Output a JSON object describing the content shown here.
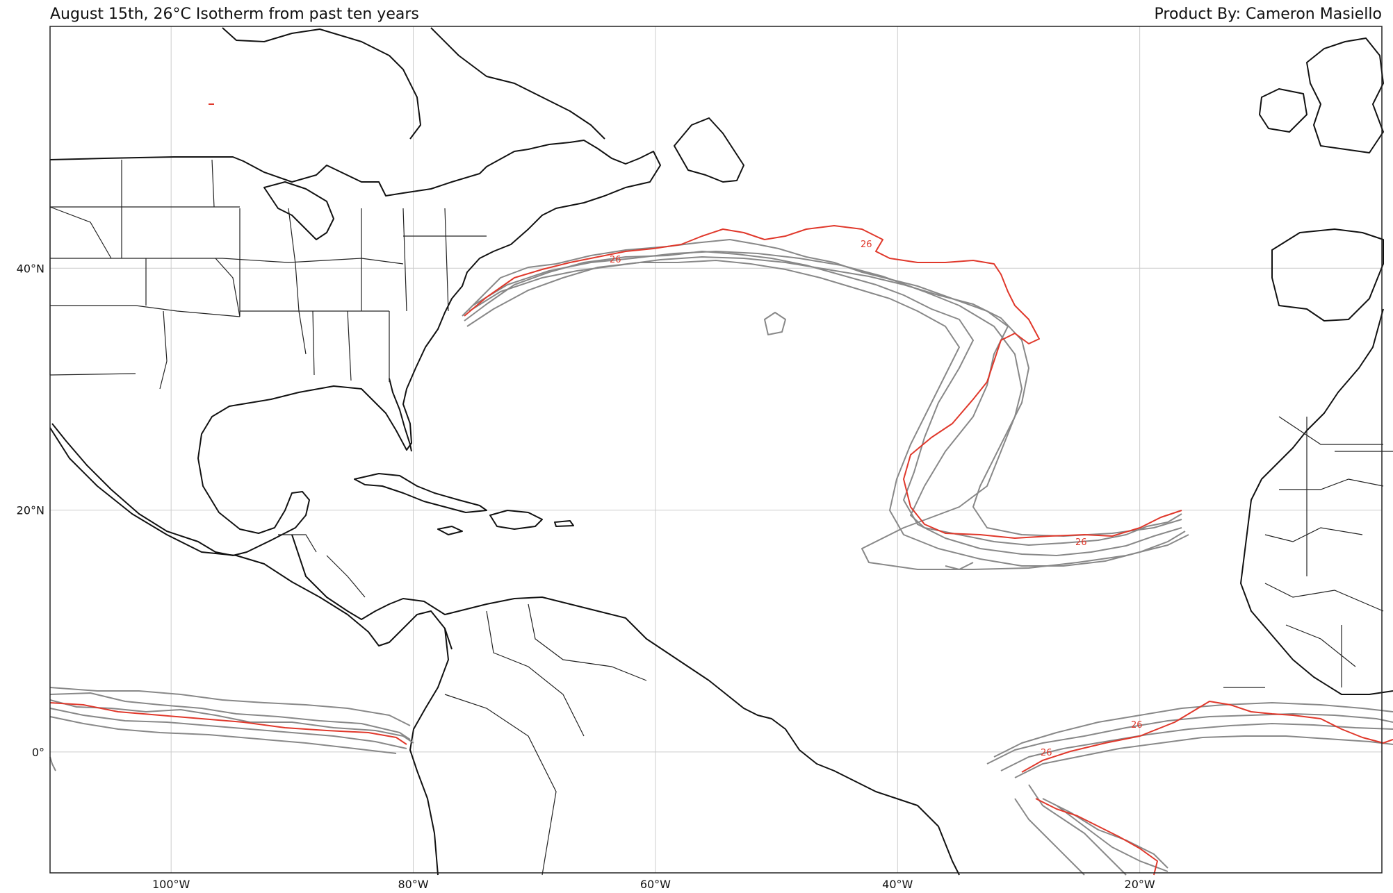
{
  "title_left": "August 15th, 26°C Isotherm from past ten years",
  "title_right": "Product By: Cameron Masiello",
  "axes": {
    "lon_range": [
      -110,
      0
    ],
    "lat_range": [
      -10,
      60
    ],
    "lon_ticks": [
      {
        "lon": -100,
        "label": "100°W"
      },
      {
        "lon": -80,
        "label": "80°W"
      },
      {
        "lon": -60,
        "label": "60°W"
      },
      {
        "lon": -40,
        "label": "40°W"
      },
      {
        "lon": -20,
        "label": "20°W"
      }
    ],
    "lat_ticks": [
      {
        "lat": 40,
        "label": "40°N"
      },
      {
        "lat": 20,
        "label": "20°N"
      },
      {
        "lat": 0,
        "label": "0°"
      }
    ],
    "gridlines": true
  },
  "colors": {
    "coast": "#111111",
    "borders": "#222222",
    "grid": "#cccccc",
    "past_years": "#888888",
    "current_year": "#e0382b"
  },
  "contour_label": "26"
}
